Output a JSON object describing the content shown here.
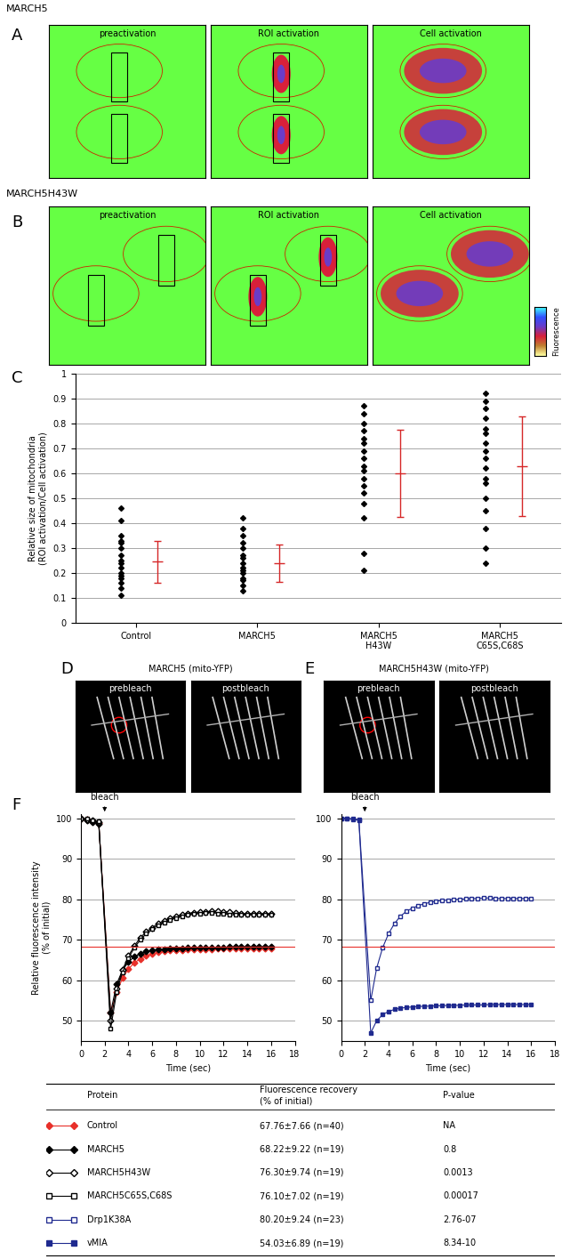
{
  "images": [
    {
      "panel_label": "A",
      "title": "MARCH5",
      "frames": [
        "preactivation",
        "ROI activation",
        "Cell activation"
      ]
    },
    {
      "panel_label": "B",
      "title": "MARCH5H43W",
      "frames": [
        "preactivation",
        "ROI activation",
        "Cell activation"
      ]
    },
    {
      "panel_label": "D",
      "title": "MARCH5 (mito-YFP)",
      "frames": [
        "prebleach",
        "postbleach"
      ]
    },
    {
      "panel_label": "E",
      "title": "MARCH5H43W (mito-YFP)",
      "frames": [
        "prebleach",
        "postbleach"
      ]
    }
  ],
  "colorbar_label": "Fluorescence",
  "chart_data": [
    {
      "type": "strip",
      "panel_label": "C",
      "y_label": "Relative size of mitochondria\n(ROI activation/Cell activation)",
      "categories": [
        "Control",
        "MARCH5",
        "MARCH5\nH43W",
        "MARCH5\nC65S,C68S"
      ],
      "color": "#000000",
      "marker": "diamond",
      "values": [
        [
          0.46,
          0.41,
          0.35,
          0.33,
          0.32,
          0.3,
          0.27,
          0.25,
          0.24,
          0.22,
          0.2,
          0.19,
          0.18,
          0.16,
          0.14,
          0.11
        ],
        [
          0.42,
          0.38,
          0.35,
          0.32,
          0.3,
          0.27,
          0.26,
          0.24,
          0.22,
          0.21,
          0.2,
          0.18,
          0.17,
          0.15,
          0.13
        ],
        [
          0.87,
          0.84,
          0.8,
          0.77,
          0.74,
          0.72,
          0.69,
          0.66,
          0.63,
          0.61,
          0.58,
          0.55,
          0.52,
          0.48,
          0.42,
          0.28,
          0.21
        ],
        [
          0.92,
          0.89,
          0.86,
          0.82,
          0.78,
          0.76,
          0.72,
          0.69,
          0.66,
          0.62,
          0.58,
          0.56,
          0.5,
          0.45,
          0.38,
          0.3,
          0.24
        ]
      ],
      "mean_sd": {
        "color": "#d62728",
        "mean": [
          0.245,
          0.24,
          0.6,
          0.63
        ],
        "sd": [
          0.085,
          0.075,
          0.175,
          0.2
        ]
      },
      "ylim": [
        0,
        1
      ],
      "yticks": [
        0,
        0.1,
        0.2,
        0.3,
        0.4,
        0.5,
        0.6,
        0.7,
        0.8,
        0.9,
        1
      ],
      "grid": true
    },
    {
      "type": "line",
      "panel_label": "F",
      "annotation": "bleach",
      "x_label": "Time (sec)",
      "y_label": "Relative fluorescence intensity\n(% of initial)",
      "x": [
        0,
        0.5,
        1,
        1.5,
        2.5,
        3,
        3.5,
        4,
        4.5,
        5,
        5.5,
        6,
        6.5,
        7,
        7.5,
        8,
        8.5,
        9,
        9.5,
        10,
        10.5,
        11,
        11.5,
        12,
        12.5,
        13,
        13.5,
        14,
        14.5,
        15,
        15.5,
        16
      ],
      "series": [
        {
          "name": "Control",
          "color": "#e8302a",
          "marker": "diamond",
          "values": [
            100,
            99.6,
            99.2,
            98.8,
            52,
            57,
            60.5,
            62.8,
            64.3,
            65.3,
            66,
            66.5,
            66.9,
            67.1,
            67.3,
            67.4,
            67.5,
            67.6,
            67.6,
            67.7,
            67.7,
            67.7,
            67.8,
            67.8,
            67.8,
            67.8,
            67.8,
            67.8,
            67.8,
            67.8,
            67.8,
            67.8
          ]
        },
        {
          "name": "MARCH5",
          "color": "#000000",
          "marker": "diamond",
          "values": [
            100,
            99.5,
            99,
            98.5,
            52,
            59,
            62.5,
            64.5,
            65.8,
            66.6,
            67.1,
            67.4,
            67.6,
            67.7,
            67.8,
            67.9,
            67.9,
            68,
            68,
            68,
            68.1,
            68.1,
            68.1,
            68.1,
            68.2,
            68.2,
            68.2,
            68.2,
            68.2,
            68.2,
            68.2,
            68.2
          ]
        },
        {
          "name": "MARCH5H43W",
          "color": "#000000",
          "marker": "diamond_open",
          "values": [
            100,
            99.7,
            99.4,
            99,
            50,
            58,
            62.5,
            66,
            68.5,
            70.5,
            72,
            73,
            74,
            74.7,
            75.3,
            75.8,
            76.2,
            76.5,
            76.7,
            76.8,
            76.9,
            77,
            77,
            76.9,
            76.8,
            76.6,
            76.4,
            76.3,
            76.3,
            76.3,
            76.3,
            76.3
          ]
        },
        {
          "name": "MARCH5C65S,C68S",
          "color": "#000000",
          "marker": "square_open",
          "values": [
            100,
            99.8,
            99.5,
            99.2,
            48,
            57,
            62,
            65.5,
            68,
            70,
            71.5,
            72.7,
            73.6,
            74.3,
            74.9,
            75.4,
            75.8,
            76.1,
            76.3,
            76.5,
            76.6,
            76.7,
            76.5,
            76.4,
            76.2,
            76.1,
            76.1,
            76.1,
            76.1,
            76.1,
            76.1,
            76.1
          ]
        }
      ],
      "reference_line": {
        "value": 68.2,
        "color": "#e8302a"
      },
      "xlim": [
        0,
        18
      ],
      "xticks": [
        0,
        2,
        4,
        6,
        8,
        10,
        12,
        14,
        16,
        18
      ],
      "ylim": [
        45,
        101
      ],
      "yticks": [
        50,
        60,
        70,
        80,
        90,
        100
      ],
      "grid": true
    },
    {
      "type": "line",
      "annotation": "bleach",
      "x_label": "Time (sec)",
      "x": [
        0,
        0.5,
        1,
        1.5,
        2.5,
        3,
        3.5,
        4,
        4.5,
        5,
        5.5,
        6,
        6.5,
        7,
        7.5,
        8,
        8.5,
        9,
        9.5,
        10,
        10.5,
        11,
        11.5,
        12,
        12.5,
        13,
        13.5,
        14,
        14.5,
        15,
        15.5,
        16
      ],
      "series": [
        {
          "name": "Drp1K38A",
          "color": "#1f2a8f",
          "marker": "square_open",
          "values": [
            100,
            100,
            99.8,
            99.6,
            55,
            63,
            68,
            71.5,
            74,
            75.8,
            77,
            77.8,
            78.4,
            78.9,
            79.2,
            79.5,
            79.7,
            79.8,
            79.9,
            80,
            80.1,
            80.2,
            80.2,
            80.3,
            80.3,
            80.2,
            80.2,
            80.2,
            80.2,
            80.2,
            80.2,
            80.2
          ]
        },
        {
          "name": "vMIA",
          "color": "#1f2a8f",
          "marker": "square",
          "values": [
            100,
            99.9,
            99.7,
            99.5,
            47,
            50,
            51.5,
            52.3,
            52.8,
            53.1,
            53.3,
            53.4,
            53.5,
            53.6,
            53.6,
            53.7,
            53.7,
            53.8,
            53.8,
            53.8,
            53.9,
            53.9,
            53.9,
            53.9,
            54,
            54,
            54,
            54,
            54,
            54,
            54,
            54
          ]
        }
      ],
      "reference_line": {
        "value": 68.2,
        "color": "#e8302a"
      },
      "xlim": [
        0,
        18
      ],
      "xticks": [
        0,
        2,
        4,
        6,
        8,
        10,
        12,
        14,
        16,
        18
      ],
      "ylim": [
        45,
        101
      ],
      "yticks": [
        50,
        60,
        70,
        80,
        90,
        100
      ],
      "grid": true
    }
  ],
  "table": {
    "header": [
      "Protein",
      "Fluorescence recovery\n(% of initial)",
      "P-value"
    ],
    "rows": [
      [
        "Control",
        "67.76±7.66 (n=40)",
        "NA"
      ],
      [
        "MARCH5",
        "68.22±9.22 (n=19)",
        "0.8"
      ],
      [
        "MARCH5H43W",
        "76.30±9.74 (n=19)",
        "0.0013"
      ],
      [
        "MARCH5C65S,C68S",
        "76.10±7.02 (n=19)",
        "0.00017"
      ],
      [
        "Drp1K38A",
        "80.20±9.24 (n=23)",
        "2.76-07"
      ],
      [
        "vMIA",
        "54.03±6.89 (n=19)",
        "8.34-10"
      ]
    ]
  }
}
